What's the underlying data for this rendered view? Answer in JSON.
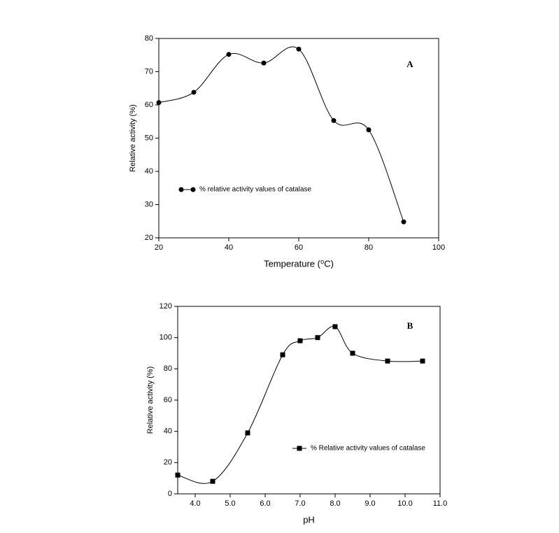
{
  "chart_data": [
    {
      "type": "line",
      "smooth": true,
      "marker": "circle",
      "color": "#000000",
      "annotation": "A",
      "x_label": "Temperature (⁰C)",
      "y_label": "Relative activity (%)",
      "xlim": [
        20,
        100
      ],
      "xticks": [
        20,
        40,
        60,
        80,
        100
      ],
      "ylim": [
        20,
        80
      ],
      "yticks": [
        20,
        30,
        40,
        50,
        60,
        70,
        80
      ],
      "series": [
        {
          "name": "% relative activity values of catalase",
          "color": "#000000",
          "x": [
            20,
            30,
            40,
            50,
            60,
            70,
            80,
            90
          ],
          "values": [
            60.7,
            63.8,
            75.2,
            72.6,
            76.8,
            55.3,
            52.5,
            24.8
          ]
        }
      ]
    },
    {
      "type": "line",
      "smooth": true,
      "marker": "square",
      "color": "#000000",
      "annotation": "B",
      "x_label": "pH",
      "y_label": "Relative activity (%)",
      "xlim": [
        3.5,
        11.0
      ],
      "xticks": [
        {
          "value": 4,
          "label": "4.0"
        },
        {
          "value": 5,
          "label": "5.0"
        },
        {
          "value": 6,
          "label": "6.0"
        },
        {
          "value": 7,
          "label": "7.0"
        },
        {
          "value": 8,
          "label": "8.0"
        },
        {
          "value": 9,
          "label": "9.0"
        },
        {
          "value": 10,
          "label": "10.0"
        },
        {
          "value": 11,
          "label": "11.0"
        }
      ],
      "ylim": [
        0,
        120
      ],
      "yticks": [
        0,
        20,
        40,
        60,
        80,
        100,
        120
      ],
      "series": [
        {
          "name": "% Relative activity values of catalase",
          "color": "#000000",
          "x": [
            3.5,
            4.5,
            5.5,
            6.5,
            7.0,
            7.5,
            8.0,
            8.5,
            9.5,
            10.5
          ],
          "values": [
            12,
            8,
            39,
            89,
            98,
            100,
            107,
            90,
            85,
            85
          ]
        }
      ]
    }
  ]
}
